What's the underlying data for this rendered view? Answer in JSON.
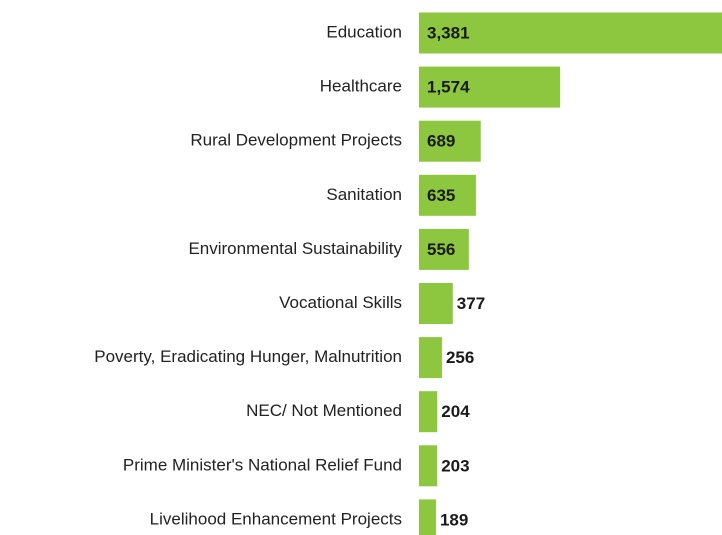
{
  "chart_data": {
    "type": "bar",
    "orientation": "horizontal",
    "categories": [
      "Education",
      "Healthcare",
      "Rural Development Projects",
      "Sanitation",
      "Environmental Sustainability",
      "Vocational Skills",
      "Poverty, Eradicating Hunger, Malnutrition",
      "NEC/ Not Mentioned",
      "Prime Minister's National Relief Fund",
      "Livelihood Enhancement Projects"
    ],
    "values": [
      3381,
      1574,
      689,
      635,
      556,
      377,
      256,
      204,
      203,
      189
    ],
    "value_labels": [
      "3,381",
      "1,574",
      "689",
      "635",
      "556",
      "377",
      "256",
      "204",
      "203",
      "189"
    ],
    "color": "#8dc63f"
  }
}
